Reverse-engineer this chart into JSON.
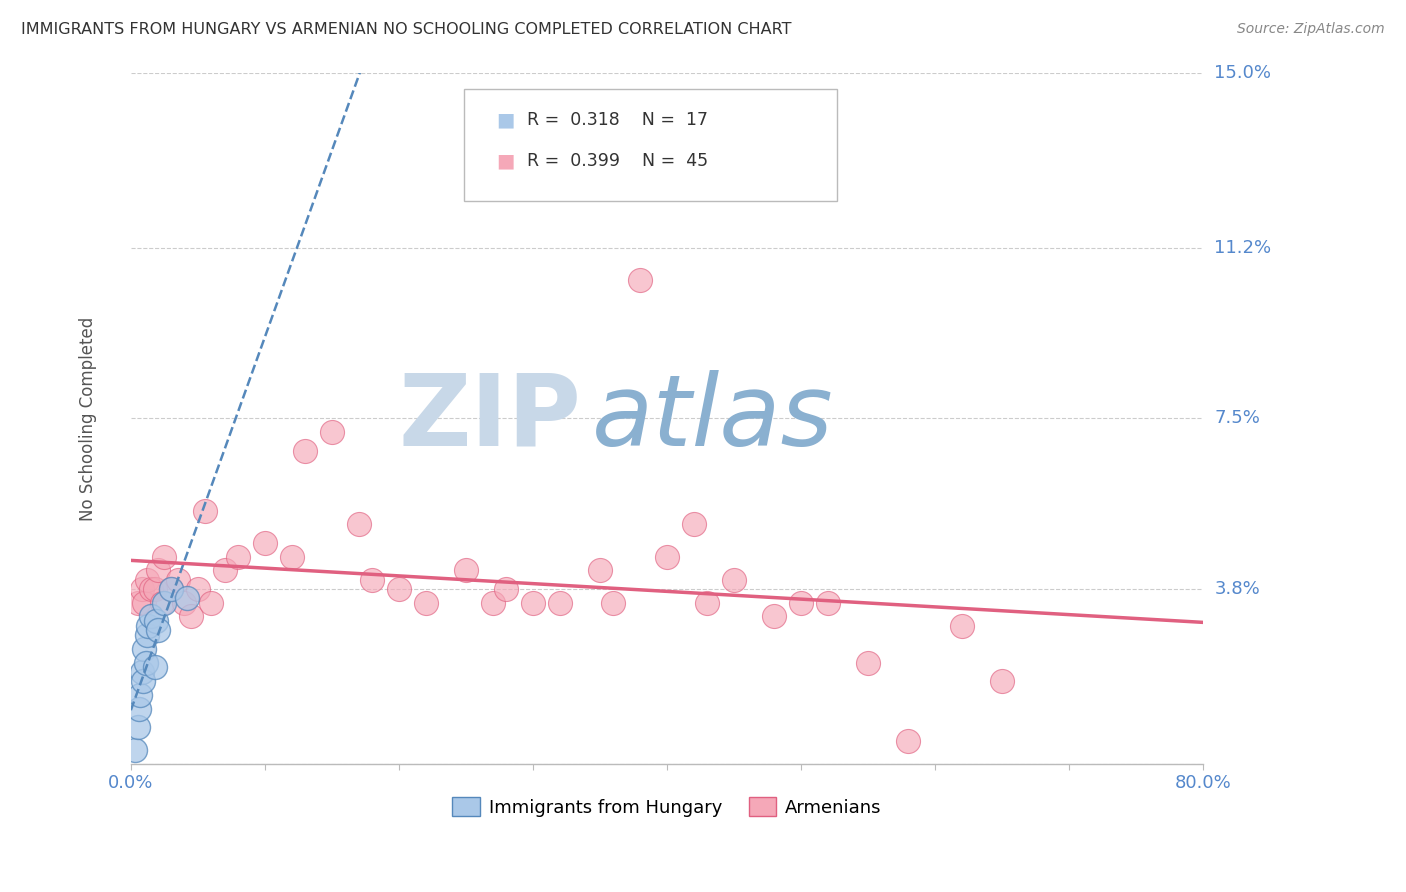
{
  "title": "IMMIGRANTS FROM HUNGARY VS ARMENIAN NO SCHOOLING COMPLETED CORRELATION CHART",
  "source": "Source: ZipAtlas.com",
  "ylabel": "No Schooling Completed",
  "xlim": [
    0.0,
    80.0
  ],
  "ylim": [
    0.0,
    15.0
  ],
  "legend1_R": "0.318",
  "legend1_N": "17",
  "legend2_R": "0.399",
  "legend2_N": "45",
  "legend1_label": "Immigrants from Hungary",
  "legend2_label": "Armenians",
  "watermark_zip": "ZIP",
  "watermark_atlas": "atlas",
  "ylabel_ticks": [
    0.0,
    3.8,
    7.5,
    11.2,
    15.0
  ],
  "ylabel_labels": [
    "",
    "3.8%",
    "7.5%",
    "11.2%",
    "15.0%"
  ],
  "blue_scatter_x": [
    0.3,
    0.5,
    0.6,
    0.7,
    0.8,
    0.9,
    1.0,
    1.1,
    1.2,
    1.3,
    1.5,
    1.8,
    1.9,
    2.0,
    2.5,
    3.0,
    4.2
  ],
  "blue_scatter_y": [
    0.3,
    0.8,
    1.2,
    1.5,
    2.0,
    1.8,
    2.5,
    2.2,
    2.8,
    3.0,
    3.2,
    2.1,
    3.1,
    2.9,
    3.5,
    3.8,
    3.6
  ],
  "pink_scatter_x": [
    0.5,
    0.8,
    1.0,
    1.2,
    1.5,
    1.8,
    2.0,
    2.3,
    2.5,
    3.0,
    3.5,
    4.0,
    4.5,
    5.0,
    5.5,
    6.0,
    7.0,
    8.0,
    10.0,
    12.0,
    13.0,
    15.0,
    17.0,
    18.0,
    20.0,
    22.0,
    25.0,
    27.0,
    28.0,
    30.0,
    32.0,
    35.0,
    36.0,
    38.0,
    40.0,
    42.0,
    43.0,
    45.0,
    48.0,
    50.0,
    52.0,
    55.0,
    58.0,
    62.0,
    65.0
  ],
  "pink_scatter_y": [
    3.5,
    3.8,
    3.5,
    4.0,
    3.8,
    3.8,
    4.2,
    3.5,
    4.5,
    3.8,
    4.0,
    3.5,
    3.2,
    3.8,
    5.5,
    3.5,
    4.2,
    4.5,
    4.8,
    4.5,
    6.8,
    7.2,
    5.2,
    4.0,
    3.8,
    3.5,
    4.2,
    3.5,
    3.8,
    3.5,
    3.5,
    4.2,
    3.5,
    10.5,
    4.5,
    5.2,
    3.5,
    4.0,
    3.2,
    3.5,
    3.5,
    2.2,
    0.5,
    3.0,
    1.8
  ],
  "blue_color": "#aac8e8",
  "pink_color": "#f5a8b8",
  "blue_line_color": "#5588bb",
  "pink_line_color": "#e06080",
  "title_color": "#333333",
  "tick_color": "#5588cc",
  "source_color": "#888888",
  "background_color": "#ffffff",
  "grid_color": "#cccccc",
  "watermark_zip_color": "#c8d8e8",
  "watermark_atlas_color": "#8ab0d0"
}
